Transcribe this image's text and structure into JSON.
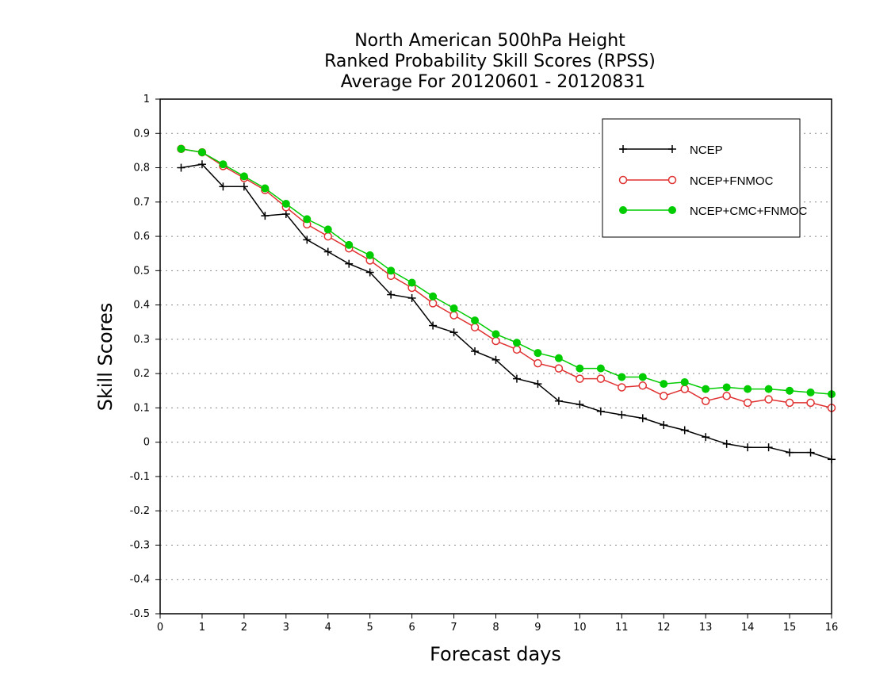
{
  "chart_data": {
    "type": "line",
    "title": [
      "North American 500hPa Height",
      "Ranked Probability Skill Scores (RPSS)",
      "Average For 20120601 - 20120831"
    ],
    "xlabel": "Forecast days",
    "ylabel": "Skill Scores",
    "xlim": [
      0,
      16
    ],
    "ylim": [
      -0.5,
      1
    ],
    "x_ticks": [
      0,
      1,
      2,
      3,
      4,
      5,
      6,
      7,
      8,
      9,
      10,
      11,
      12,
      13,
      14,
      15,
      16
    ],
    "x_tick_labels": [
      "0",
      "1",
      "2",
      "3",
      "4",
      "5",
      "6",
      "7",
      "8",
      "9",
      "10",
      "11",
      "12",
      "13",
      "14",
      "15",
      "16"
    ],
    "y_ticks": [
      -0.5,
      -0.4,
      -0.3,
      -0.2,
      -0.1,
      0,
      0.1,
      0.2,
      0.3,
      0.4,
      0.5,
      0.6,
      0.7,
      0.8,
      0.9,
      1
    ],
    "y_tick_labels": [
      "-0.5",
      "-0.4",
      "-0.3",
      "-0.2",
      "-0.1",
      "0",
      "0.1",
      "0.2",
      "0.3",
      "0.4",
      "0.5",
      "0.6",
      "0.7",
      "0.8",
      "0.9",
      "1"
    ],
    "grid": "horizontal dotted",
    "legend_position": "top-right",
    "x": [
      0.5,
      1,
      1.5,
      2,
      2.5,
      3,
      3.5,
      4,
      4.5,
      5,
      5.5,
      6,
      6.5,
      7,
      7.5,
      8,
      8.5,
      9,
      9.5,
      10,
      10.5,
      11,
      11.5,
      12,
      12.5,
      13,
      13.5,
      14,
      14.5,
      15,
      15.5,
      16
    ],
    "series": [
      {
        "name": "NCEP",
        "color": "#000000",
        "marker": "plus",
        "values": [
          0.8,
          0.81,
          0.745,
          0.745,
          0.66,
          0.665,
          0.59,
          0.555,
          0.52,
          0.495,
          0.43,
          0.42,
          0.34,
          0.32,
          0.265,
          0.24,
          0.185,
          0.17,
          0.12,
          0.11,
          0.09,
          0.08,
          0.07,
          0.05,
          0.035,
          0.015,
          -0.005,
          -0.015,
          -0.015,
          -0.03,
          -0.03,
          -0.05
        ]
      },
      {
        "name": "NCEP+FNMOC",
        "color": "#e03030",
        "marker": "open-circle",
        "values": [
          0.855,
          0.845,
          0.805,
          0.77,
          0.735,
          0.685,
          0.635,
          0.6,
          0.565,
          0.53,
          0.485,
          0.45,
          0.405,
          0.37,
          0.335,
          0.295,
          0.27,
          0.23,
          0.215,
          0.185,
          0.185,
          0.16,
          0.165,
          0.135,
          0.155,
          0.12,
          0.135,
          0.115,
          0.125,
          0.115,
          0.115,
          0.1
        ]
      },
      {
        "name": "NCEP+CMC+FNMOC",
        "color": "#00cc00",
        "marker": "filled-circle",
        "values": [
          0.855,
          0.845,
          0.81,
          0.775,
          0.74,
          0.695,
          0.65,
          0.62,
          0.575,
          0.545,
          0.5,
          0.465,
          0.425,
          0.39,
          0.355,
          0.315,
          0.29,
          0.26,
          0.245,
          0.215,
          0.215,
          0.19,
          0.19,
          0.17,
          0.175,
          0.155,
          0.16,
          0.155,
          0.155,
          0.15,
          0.145,
          0.14
        ]
      }
    ]
  }
}
